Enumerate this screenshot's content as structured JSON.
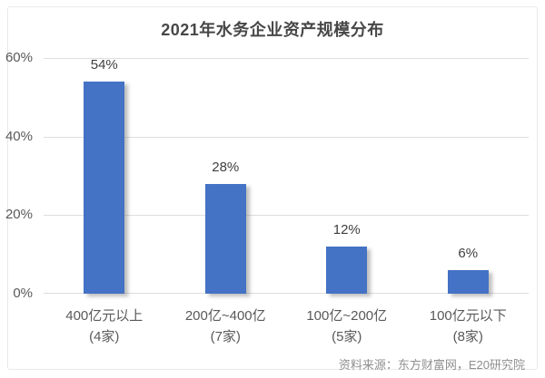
{
  "chart_data": {
    "type": "bar",
    "title": "2021年水务企业资产规模分布",
    "categories": [
      "400亿元以上",
      "200亿~400亿",
      "100亿~200亿",
      "100亿元以下"
    ],
    "category_sublabels": [
      "(4家)",
      "(7家)",
      "(5家)",
      "(8家)"
    ],
    "values": [
      54,
      28,
      12,
      6
    ],
    "value_labels": [
      "54%",
      "28%",
      "12%",
      "6%"
    ],
    "xlabel": "",
    "ylabel": "",
    "ylim": [
      0,
      60
    ],
    "yticks": [
      0,
      20,
      40,
      60
    ],
    "ytick_labels": [
      "0%",
      "20%",
      "40%",
      "60%"
    ],
    "grid": true,
    "legend": "none",
    "bar_color": "#4472c4",
    "source": "资料来源：东方财富网，E20研究院"
  }
}
